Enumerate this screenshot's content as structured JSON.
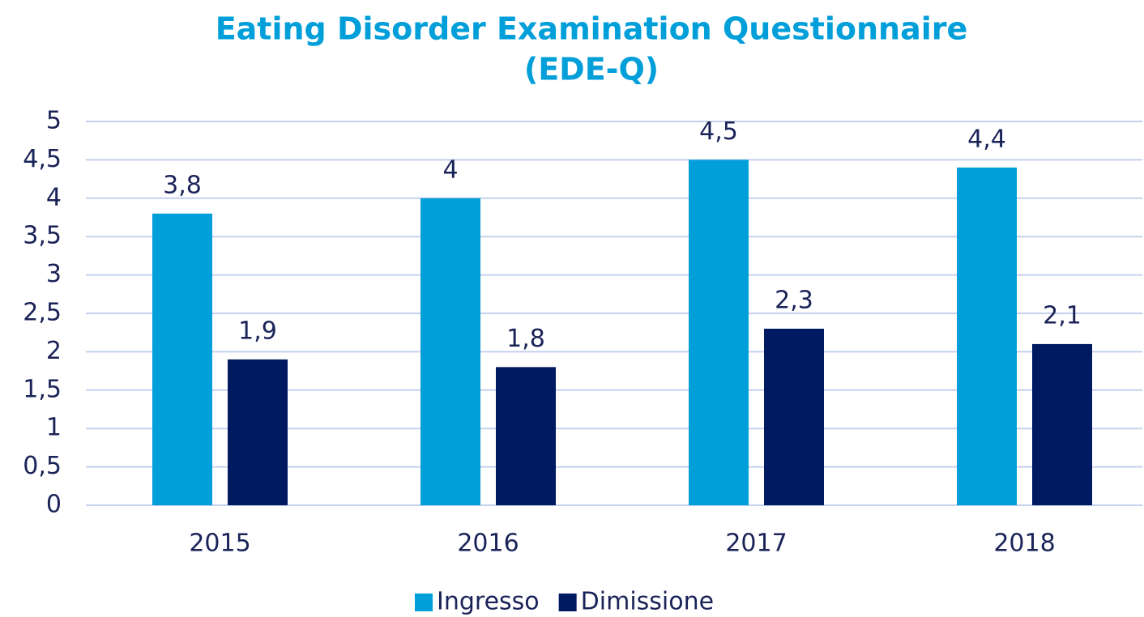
{
  "chart_data": {
    "type": "bar",
    "title": [
      "Eating Disorder Examination Questionnaire",
      "(EDE-Q)"
    ],
    "categories": [
      "2015",
      "2016",
      "2017",
      "2018"
    ],
    "series": [
      {
        "name": "Ingresso",
        "color": "#009fd9",
        "values": [
          3.8,
          4,
          4.5,
          4.4
        ],
        "value_labels": [
          "3,8",
          "4",
          "4,5",
          "4,4"
        ]
      },
      {
        "name": "Dimissione",
        "color": "#001a62",
        "values": [
          1.9,
          1.8,
          2.3,
          2.1
        ],
        "value_labels": [
          "1,9",
          "1,8",
          "2,3",
          "2,1"
        ]
      }
    ],
    "ylim": [
      0,
      5
    ],
    "yticks": [
      0,
      {
        "value": 0.5,
        "label": "0,5"
      },
      1,
      {
        "value": 1.5,
        "label": "1,5"
      },
      2,
      {
        "value": 2.5,
        "label": "2,5"
      },
      3,
      {
        "value": 3.5,
        "label": "3,5"
      },
      4,
      {
        "value": 4.5,
        "label": "4,5"
      },
      5
    ],
    "grid": true,
    "legend": "bottom"
  }
}
